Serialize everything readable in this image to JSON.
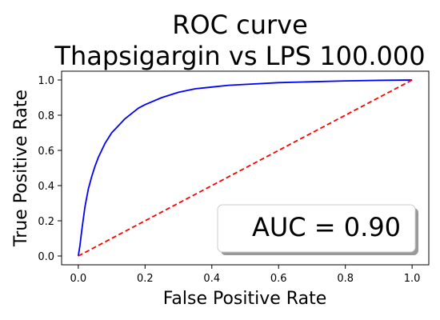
{
  "chart_data": {
    "type": "line",
    "title_lines": [
      "ROC curve",
      "Thapsigargin vs LPS 100.000"
    ],
    "xlabel": "False Positive Rate",
    "ylabel": "True Positive Rate",
    "xlim": [
      -0.05,
      1.05
    ],
    "ylim": [
      -0.05,
      1.05
    ],
    "xticks": [
      "0.0",
      "0.2",
      "0.4",
      "0.6",
      "0.8",
      "1.0"
    ],
    "yticks": [
      "0.0",
      "0.2",
      "0.4",
      "0.6",
      "0.8",
      "1.0"
    ],
    "grid": false,
    "legend": {
      "text": "AUC = 0.90",
      "placement": "lower-right"
    },
    "series": [
      {
        "color": "#0000ff",
        "style": "solid",
        "x": [
          0.0,
          0.005,
          0.01,
          0.02,
          0.03,
          0.04,
          0.05,
          0.06,
          0.07,
          0.08,
          0.09,
          0.1,
          0.12,
          0.14,
          0.16,
          0.18,
          0.2,
          0.25,
          0.3,
          0.35,
          0.4,
          0.45,
          0.5,
          0.6,
          0.7,
          0.8,
          0.9,
          1.0
        ],
        "y": [
          0.0,
          0.06,
          0.14,
          0.28,
          0.38,
          0.45,
          0.51,
          0.56,
          0.6,
          0.64,
          0.67,
          0.7,
          0.74,
          0.78,
          0.81,
          0.84,
          0.86,
          0.9,
          0.93,
          0.95,
          0.96,
          0.97,
          0.975,
          0.985,
          0.99,
          0.995,
          0.998,
          1.0
        ]
      },
      {
        "color": "#ff0000",
        "style": "dashed",
        "x": [
          0.0,
          1.0
        ],
        "y": [
          0.0,
          1.0
        ]
      }
    ]
  }
}
